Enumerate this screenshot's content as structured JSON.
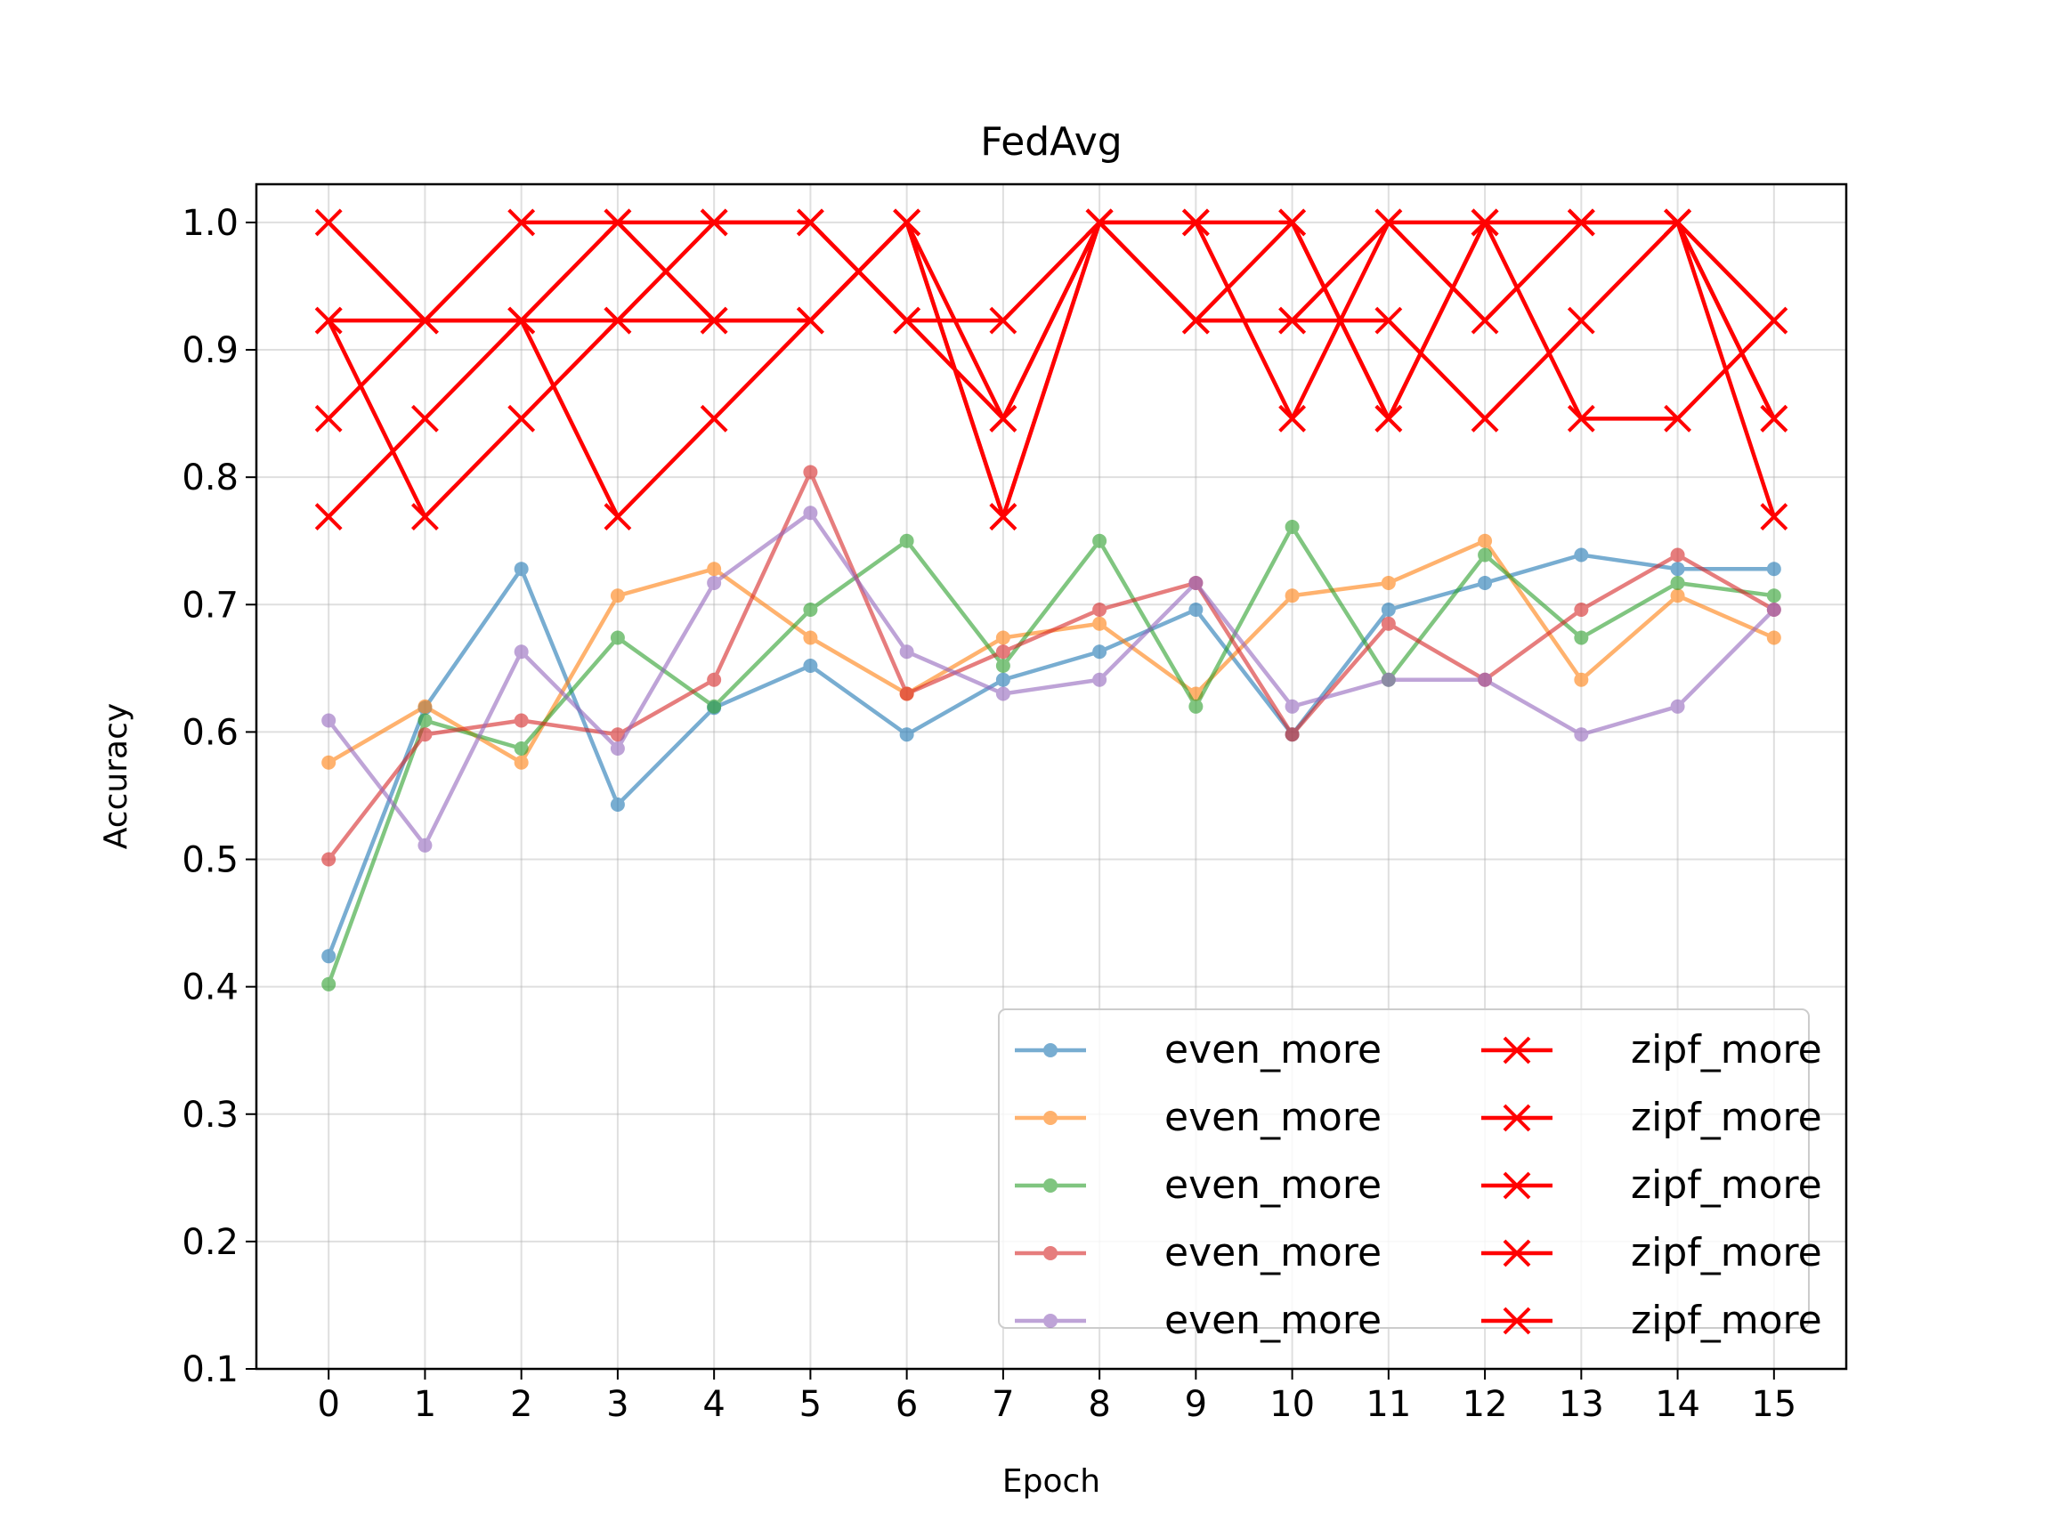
{
  "chart_data": {
    "type": "line",
    "title": "FedAvg",
    "xlabel": "Epoch",
    "ylabel": "Accuracy",
    "xlim": [
      -0.75,
      15.75
    ],
    "ylim": [
      0.1,
      1.03
    ],
    "x": [
      0,
      1,
      2,
      3,
      4,
      5,
      6,
      7,
      8,
      9,
      10,
      11,
      12,
      13,
      14,
      15
    ],
    "x_ticks": [
      "0",
      "1",
      "2",
      "3",
      "4",
      "5",
      "6",
      "7",
      "8",
      "9",
      "10",
      "11",
      "12",
      "13",
      "14",
      "15"
    ],
    "y_ticks": [
      "0.1",
      "0.2",
      "0.3",
      "0.4",
      "0.5",
      "0.6",
      "0.7",
      "0.8",
      "0.9",
      "1.0"
    ],
    "grid": true,
    "legend": {
      "placement": "lower-right",
      "columns": 2
    },
    "series": [
      {
        "name": "even_more",
        "color": "#1f77b4",
        "marker": "circle",
        "alpha": 0.6,
        "values": [
          0.424,
          0.619,
          0.728,
          0.543,
          0.619,
          0.652,
          0.598,
          0.641,
          0.663,
          0.696,
          0.598,
          0.696,
          0.717,
          0.739,
          0.728,
          0.728
        ]
      },
      {
        "name": "even_more",
        "color": "#ff7f0e",
        "marker": "circle",
        "alpha": 0.6,
        "values": [
          0.576,
          0.62,
          0.576,
          0.707,
          0.728,
          0.674,
          0.63,
          0.674,
          0.685,
          0.63,
          0.707,
          0.717,
          0.75,
          0.641,
          0.707,
          0.674
        ]
      },
      {
        "name": "even_more",
        "color": "#2ca02c",
        "marker": "circle",
        "alpha": 0.6,
        "values": [
          0.402,
          0.609,
          0.587,
          0.674,
          0.62,
          0.696,
          0.75,
          0.652,
          0.75,
          0.62,
          0.761,
          0.641,
          0.739,
          0.674,
          0.717,
          0.707
        ]
      },
      {
        "name": "even_more",
        "color": "#d62728",
        "marker": "circle",
        "alpha": 0.6,
        "values": [
          0.5,
          0.598,
          0.609,
          0.598,
          0.641,
          0.804,
          0.63,
          0.663,
          0.696,
          0.717,
          0.598,
          0.685,
          0.641,
          0.696,
          0.739,
          0.696
        ]
      },
      {
        "name": "even_more",
        "color": "#9467bd",
        "marker": "circle",
        "alpha": 0.6,
        "values": [
          0.609,
          0.511,
          0.663,
          0.587,
          0.717,
          0.772,
          0.663,
          0.63,
          0.641,
          0.717,
          0.62,
          0.641,
          0.641,
          0.598,
          0.62,
          0.696
        ]
      },
      {
        "name": "zipf_more",
        "color": "#ff0000",
        "marker": "x",
        "alpha": 1.0,
        "values": [
          1.0,
          0.923,
          1.0,
          1.0,
          0.923,
          0.923,
          1.0,
          0.769,
          1.0,
          1.0,
          1.0,
          0.846,
          1.0,
          1.0,
          1.0,
          0.769
        ]
      },
      {
        "name": "zipf_more",
        "color": "#ff0000",
        "marker": "x",
        "alpha": 1.0,
        "values": [
          0.923,
          0.769,
          0.846,
          0.923,
          1.0,
          1.0,
          0.923,
          0.923,
          1.0,
          0.923,
          0.923,
          0.923,
          0.846,
          0.923,
          1.0,
          0.923
        ]
      },
      {
        "name": "zipf_more",
        "color": "#ff0000",
        "marker": "x",
        "alpha": 1.0,
        "values": [
          0.846,
          0.923,
          0.923,
          0.769,
          0.846,
          0.923,
          1.0,
          0.846,
          1.0,
          1.0,
          0.846,
          1.0,
          1.0,
          0.846,
          0.846,
          0.923
        ]
      },
      {
        "name": "zipf_more",
        "color": "#ff0000",
        "marker": "x",
        "alpha": 1.0,
        "values": [
          0.769,
          0.846,
          0.923,
          0.923,
          0.923,
          0.923,
          1.0,
          0.769,
          1.0,
          0.923,
          0.923,
          1.0,
          0.923,
          1.0,
          1.0,
          0.846
        ]
      },
      {
        "name": "zipf_more",
        "color": "#ff0000",
        "marker": "x",
        "alpha": 1.0,
        "values": [
          0.923,
          0.923,
          0.923,
          1.0,
          1.0,
          1.0,
          0.923,
          0.846,
          1.0,
          0.923,
          1.0,
          0.846,
          1.0,
          1.0,
          1.0,
          0.846
        ]
      }
    ]
  }
}
